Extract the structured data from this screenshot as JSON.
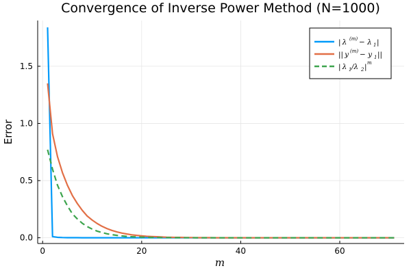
{
  "chart_data": {
    "type": "line",
    "title": "Convergence of Inverse Power Method (N=1000)",
    "xlabel": "m",
    "ylabel": "Error",
    "xlim": [
      -1,
      73
    ],
    "ylim": [
      -0.05,
      1.9
    ],
    "xticks": [
      0,
      20,
      40,
      60
    ],
    "xtick_labels": [
      "0",
      "20",
      "40",
      "60"
    ],
    "yticks": [
      0,
      0.5,
      1.0,
      1.5
    ],
    "ytick_labels": [
      "0.0",
      "0.5",
      "1.0",
      "1.5"
    ],
    "grid": true,
    "legend_position": "top-right",
    "x": [
      1,
      2,
      3,
      4,
      5,
      6,
      7,
      8,
      9,
      10,
      11,
      12,
      13,
      14,
      15,
      16,
      17,
      18,
      19,
      20,
      21,
      22,
      23,
      24,
      25,
      26,
      27,
      28,
      29,
      30,
      31,
      32,
      33,
      34,
      35,
      36,
      37,
      38,
      39,
      40,
      41,
      42,
      43,
      44,
      45,
      46,
      47,
      48,
      49,
      50,
      51,
      52,
      53,
      54,
      55,
      56,
      57,
      58,
      59,
      60,
      61,
      62,
      63,
      64,
      65,
      66,
      67,
      68,
      69,
      70,
      71
    ],
    "series": [
      {
        "name": "|λ^(m) − λ1|",
        "color": "#009AFA",
        "style": "solid",
        "values": [
          1.84,
          0.01,
          0.004,
          0.002,
          0.001,
          0.001,
          0.001,
          0,
          0,
          0,
          0,
          0,
          0,
          0,
          0,
          0,
          0,
          0,
          0,
          0,
          0,
          0,
          0,
          0,
          0,
          0,
          0,
          0,
          0,
          0,
          0,
          0,
          0,
          0,
          0,
          0,
          0,
          0,
          0,
          0,
          0,
          0,
          0,
          0,
          0,
          0,
          0,
          0,
          0,
          0,
          0,
          0,
          0,
          0,
          0,
          0,
          0,
          0,
          0,
          0,
          0,
          0,
          0,
          0,
          0,
          0,
          0,
          0,
          0,
          0,
          0
        ]
      },
      {
        "name": "||y^(m) − y1||",
        "color": "#E26F46",
        "style": "solid",
        "values": [
          1.35,
          0.91,
          0.71,
          0.57,
          0.46,
          0.37,
          0.3,
          0.24,
          0.19,
          0.155,
          0.125,
          0.1,
          0.08,
          0.064,
          0.051,
          0.041,
          0.033,
          0.026,
          0.021,
          0.017,
          0.013,
          0.011,
          0.009,
          0.007,
          0.005,
          0.004,
          0.003,
          0.003,
          0.002,
          0.002,
          0.001,
          0.001,
          0.001,
          0.001,
          0,
          0,
          0,
          0,
          0,
          0,
          0,
          0,
          0,
          0,
          0,
          0,
          0,
          0,
          0,
          0,
          0,
          0,
          0,
          0,
          0,
          0,
          0,
          0,
          0,
          0,
          0,
          0,
          0,
          0,
          0,
          0,
          0,
          0,
          0,
          0,
          0
        ]
      },
      {
        "name": "|λ1/λ2|^m",
        "color": "#3DA44D",
        "style": "dashed",
        "values": [
          0.77,
          0.6,
          0.46,
          0.36,
          0.28,
          0.21,
          0.165,
          0.127,
          0.098,
          0.076,
          0.058,
          0.045,
          0.035,
          0.027,
          0.021,
          0.016,
          0.012,
          0.0095,
          0.0073,
          0.0056,
          0.0043,
          0.0033,
          0.0026,
          0.002,
          0.0015,
          0.0012,
          0.0009,
          0.0007,
          0.0005,
          0.0004,
          0.0003,
          0.0002,
          0.0002,
          0.0001,
          0.0001,
          0,
          0,
          0,
          0,
          0,
          0,
          0,
          0,
          0,
          0,
          0,
          0,
          0,
          0,
          0,
          0,
          0,
          0,
          0,
          0,
          0,
          0,
          0,
          0,
          0,
          0,
          0,
          0,
          0,
          0,
          0,
          0,
          0,
          0,
          0,
          0
        ]
      }
    ]
  }
}
